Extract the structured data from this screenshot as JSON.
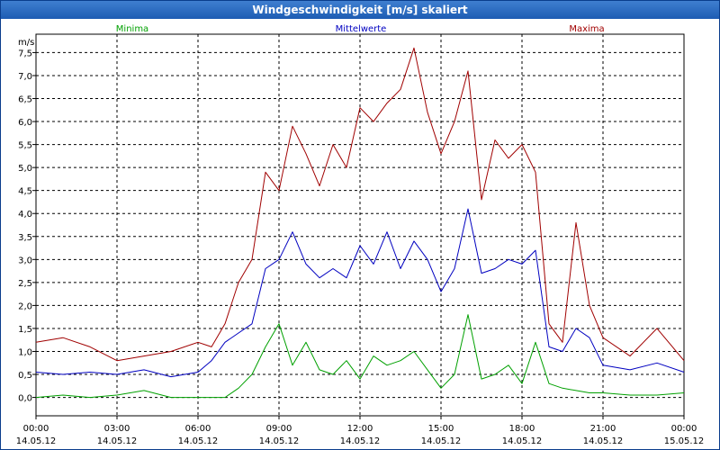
{
  "window": {
    "title": "Windgeschwindigkeit [m/s] skaliert"
  },
  "colors": {
    "min": "#00a000",
    "mean": "#0000c0",
    "max": "#a00000",
    "grid": "#000000",
    "title_bg": "#2a66c0"
  },
  "chart_data": {
    "type": "line",
    "ylabel": "m/s",
    "ylim": [
      -0.4,
      7.9
    ],
    "y_ticks": [
      "0,0",
      "0,5",
      "1,0",
      "1,5",
      "2,0",
      "2,5",
      "3,0",
      "3,5",
      "4,0",
      "4,5",
      "5,0",
      "5,5",
      "6,0",
      "6,5",
      "7,0",
      "7,5"
    ],
    "y_tick_values": [
      0,
      0.5,
      1,
      1.5,
      2,
      2.5,
      3,
      3.5,
      4,
      4.5,
      5,
      5.5,
      6,
      6.5,
      7,
      7.5
    ],
    "x_range_hours": [
      0,
      24
    ],
    "x_ticks": [
      {
        "time": "00:00",
        "date": "14.05.12"
      },
      {
        "time": "03:00",
        "date": "14.05.12"
      },
      {
        "time": "06:00",
        "date": "14.05.12"
      },
      {
        "time": "09:00",
        "date": "14.05.12"
      },
      {
        "time": "12:00",
        "date": "14.05.12"
      },
      {
        "time": "15:00",
        "date": "14.05.12"
      },
      {
        "time": "18:00",
        "date": "14.05.12"
      },
      {
        "time": "21:00",
        "date": "14.05.12"
      },
      {
        "time": "00:00",
        "date": "15.05.12"
      }
    ],
    "grid": true,
    "legend_placement": "top",
    "series": [
      {
        "name": "Minima",
        "color": "#00a000",
        "x": [
          0,
          1,
          2,
          3,
          4,
          5,
          6,
          6.5,
          7,
          7.5,
          8,
          8.5,
          9,
          9.5,
          10,
          10.5,
          11,
          11.5,
          12,
          12.5,
          13,
          13.5,
          14,
          14.5,
          15,
          15.5,
          16,
          16.5,
          17,
          17.5,
          18,
          18.5,
          19,
          19.5,
          20,
          20.5,
          21,
          22,
          23,
          24
        ],
        "values": [
          0.0,
          0.05,
          0.0,
          0.05,
          0.15,
          0.0,
          0.0,
          0.0,
          0.0,
          0.2,
          0.5,
          1.1,
          1.6,
          0.7,
          1.2,
          0.6,
          0.5,
          0.8,
          0.4,
          0.9,
          0.7,
          0.8,
          1.0,
          0.6,
          0.2,
          0.5,
          1.8,
          0.4,
          0.5,
          0.7,
          0.3,
          1.2,
          0.3,
          0.2,
          0.15,
          0.1,
          0.1,
          0.05,
          0.05,
          0.1
        ]
      },
      {
        "name": "Mittelwerte",
        "color": "#0000c0",
        "x": [
          0,
          1,
          2,
          3,
          4,
          5,
          6,
          6.5,
          7,
          7.5,
          8,
          8.5,
          9,
          9.5,
          10,
          10.5,
          11,
          11.5,
          12,
          12.5,
          13,
          13.5,
          14,
          14.5,
          15,
          15.5,
          16,
          16.5,
          17,
          17.5,
          18,
          18.5,
          19,
          19.5,
          20,
          20.5,
          21,
          22,
          23,
          24
        ],
        "values": [
          0.55,
          0.5,
          0.55,
          0.5,
          0.6,
          0.45,
          0.55,
          0.8,
          1.2,
          1.4,
          1.6,
          2.8,
          3.0,
          3.6,
          2.9,
          2.6,
          2.8,
          2.6,
          3.3,
          2.9,
          3.6,
          2.8,
          3.4,
          3.0,
          2.3,
          2.8,
          4.1,
          2.7,
          2.8,
          3.0,
          2.9,
          3.2,
          1.1,
          1.0,
          1.5,
          1.3,
          0.7,
          0.6,
          0.75,
          0.55
        ]
      },
      {
        "name": "Maxima",
        "color": "#a00000",
        "x": [
          0,
          1,
          2,
          3,
          4,
          5,
          6,
          6.5,
          7,
          7.5,
          8,
          8.5,
          9,
          9.5,
          10,
          10.5,
          11,
          11.5,
          12,
          12.5,
          13,
          13.5,
          14,
          14.5,
          15,
          15.5,
          16,
          16.5,
          17,
          17.5,
          18,
          18.5,
          19,
          19.5,
          20,
          20.5,
          21,
          22,
          23,
          24
        ],
        "values": [
          1.2,
          1.3,
          1.1,
          0.8,
          0.9,
          1.0,
          1.2,
          1.1,
          1.6,
          2.5,
          3.0,
          4.9,
          4.5,
          5.9,
          5.3,
          4.6,
          5.5,
          5.0,
          6.3,
          6.0,
          6.4,
          6.7,
          7.6,
          6.2,
          5.3,
          6.0,
          7.1,
          4.3,
          5.6,
          5.2,
          5.5,
          4.9,
          1.6,
          1.2,
          3.8,
          2.0,
          1.3,
          0.9,
          1.5,
          0.8
        ]
      }
    ]
  }
}
